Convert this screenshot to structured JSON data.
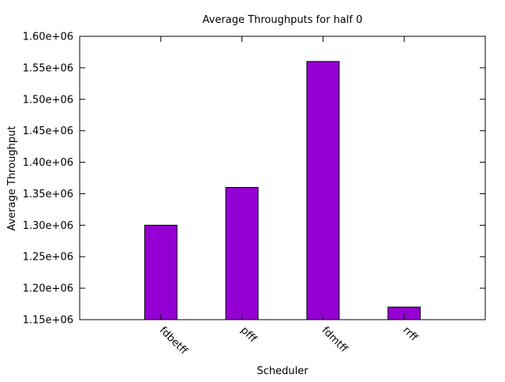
{
  "chart_data": {
    "type": "bar",
    "title": "Average Throughputs for half 0",
    "xlabel": "Scheduler",
    "ylabel": "Average Throughput",
    "categories": [
      "fdbetff",
      "pfff",
      "fdmtff",
      "rrff"
    ],
    "values": [
      1300000,
      1360000,
      1560000,
      1170000
    ],
    "ylim": [
      1150000,
      1600000
    ],
    "yticks": [
      1150000,
      1200000,
      1250000,
      1300000,
      1350000,
      1400000,
      1450000,
      1500000,
      1550000,
      1600000
    ],
    "ytick_labels": [
      "1.15e+06",
      "1.20e+06",
      "1.25e+06",
      "1.30e+06",
      "1.35e+06",
      "1.40e+06",
      "1.45e+06",
      "1.50e+06",
      "1.55e+06",
      "1.60e+06"
    ],
    "bar_color": "#9400d3",
    "grid": false,
    "legend": "none"
  }
}
